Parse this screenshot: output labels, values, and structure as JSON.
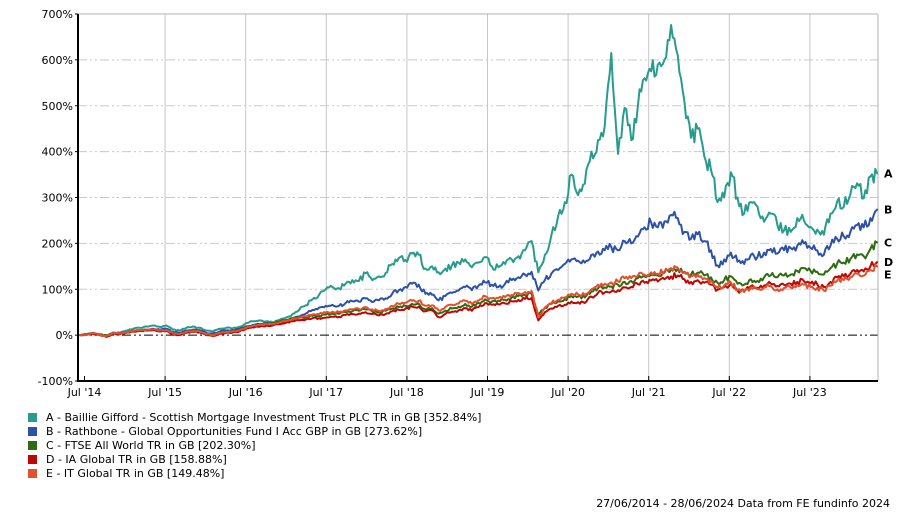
{
  "chart": {
    "y_axis_labels": [
      "700%",
      "600%",
      "500%",
      "400%",
      "300%",
      "200%",
      "100%",
      "0%",
      "-100%"
    ],
    "x_axis_labels": [
      "Jul '14",
      "Jul '15",
      "Jul '16",
      "Jul '17",
      "Jul '18",
      "Jul '19",
      "Jul '20",
      "Jul '21",
      "Jul '22",
      "Jul '23"
    ],
    "footer": "27/06/2014 - 28/06/2024 Data from FE fundinfo 2024"
  },
  "chart_data": {
    "type": "line",
    "title": "",
    "date_range_start": "27/06/2014",
    "date_range_end": "28/06/2024",
    "x_unit": "month",
    "x_points": 121,
    "ylim": [
      -100,
      700
    ],
    "y_step": 100,
    "y_unit": "%",
    "grid": true,
    "legend_position": "bottom-left",
    "colors": {
      "grid_h": "#c9c9c9",
      "grid_v": "#c6c6c6",
      "border": "#b3b3b3",
      "axis": "#000000",
      "zero_line": "#000000"
    },
    "series": [
      {
        "letter": "A",
        "label": "A - Baillie Gifford - Scottish Mortgage Investment Trust PLC TR in GB [352.84%]",
        "color": "#279c8e",
        "final_pct": 352.84,
        "values": [
          0,
          2,
          5,
          1,
          -2,
          6,
          5,
          10,
          14,
          16,
          19,
          21,
          18,
          21,
          12,
          10,
          16,
          19,
          16,
          10,
          8,
          14,
          16,
          15,
          18,
          26,
          30,
          32,
          30,
          28,
          33,
          38,
          46,
          55,
          65,
          78,
          88,
          100,
          105,
          102,
          112,
          120,
          118,
          135,
          120,
          128,
          135,
          155,
          168,
          164,
          178,
          175,
          145,
          150,
          137,
          145,
          152,
          158,
          165,
          148,
          158,
          170,
          150,
          148,
          155,
          165,
          172,
          185,
          205,
          137,
          175,
          220,
          260,
          290,
          350,
          305,
          330,
          400,
          425,
          455,
          615,
          395,
          495,
          425,
          500,
          560,
          575,
          590,
          600,
          676,
          610,
          510,
          430,
          450,
          390,
          360,
          290,
          300,
          355,
          300,
          265,
          290,
          280,
          247,
          265,
          240,
          228,
          225,
          255,
          250,
          236,
          230,
          219,
          265,
          291,
          280,
          307,
          331,
          298,
          346,
          352.84
        ]
      },
      {
        "letter": "B",
        "label": "B - Rathbone - Global Opportunities Fund I Acc GBP in GB [273.62%]",
        "color": "#2b52a8",
        "final_pct": 273.62,
        "values": [
          0,
          1,
          3,
          1,
          -1,
          4,
          4,
          6,
          9,
          10,
          12,
          14,
          12,
          14,
          7,
          5,
          10,
          12,
          11,
          5,
          3,
          8,
          10,
          11,
          13,
          19,
          22,
          24,
          26,
          25,
          28,
          31,
          35,
          40,
          47,
          55,
          60,
          64,
          66,
          64,
          70,
          74,
          73,
          80,
          72,
          76,
          80,
          90,
          98,
          105,
          112,
          110,
          90,
          88,
          76,
          85,
          92,
          97,
          105,
          98,
          108,
          115,
          110,
          105,
          112,
          120,
          126,
          132,
          138,
          97,
          120,
          135,
          142,
          155,
          165,
          162,
          158,
          175,
          182,
          185,
          192,
          185,
          205,
          200,
          215,
          235,
          245,
          235,
          248,
          262,
          255,
          225,
          210,
          220,
          205,
          185,
          152,
          165,
          180,
          160,
          155,
          175,
          170,
          180,
          188,
          178,
          185,
          190,
          195,
          200,
          190,
          185,
          175,
          195,
          210,
          215,
          225,
          240,
          235,
          255,
          273.62
        ]
      },
      {
        "letter": "C",
        "label": "C - FTSE All World TR in GB [202.30%]",
        "color": "#2f6b10",
        "final_pct": 202.3,
        "values": [
          0,
          1,
          4,
          2,
          0,
          4,
          3,
          6,
          9,
          11,
          11,
          12,
          8,
          10,
          3,
          1,
          7,
          8,
          7,
          2,
          0,
          5,
          6,
          8,
          12,
          17,
          20,
          21,
          25,
          26,
          30,
          33,
          37,
          38,
          39,
          42,
          42,
          45,
          47,
          46,
          50,
          52,
          53,
          56,
          52,
          49,
          53,
          58,
          61,
          64,
          68,
          69,
          56,
          59,
          47,
          53,
          58,
          62,
          68,
          62,
          70,
          78,
          73,
          75,
          77,
          82,
          85,
          87,
          90,
          45,
          60,
          68,
          74,
          78,
          85,
          84,
          82,
          95,
          102,
          104,
          106,
          110,
          116,
          118,
          124,
          128,
          132,
          130,
          136,
          142,
          145,
          138,
          132,
          136,
          130,
          126,
          114,
          120,
          128,
          112,
          110,
          122,
          118,
          126,
          130,
          126,
          130,
          132,
          140,
          146,
          140,
          138,
          132,
          146,
          156,
          158,
          166,
          176,
          172,
          188,
          202.3
        ]
      },
      {
        "letter": "D",
        "label": "D - IA Global TR in GB [158.88%]",
        "color": "#c00505",
        "final_pct": 158.88,
        "values": [
          0,
          1,
          3,
          0,
          -4,
          3,
          2,
          5,
          8,
          9,
          10,
          11,
          8,
          9,
          2,
          0,
          5,
          7,
          6,
          0,
          -2,
          3,
          5,
          6,
          8,
          14,
          17,
          18,
          20,
          21,
          24,
          27,
          30,
          32,
          34,
          37,
          37,
          38,
          40,
          40,
          44,
          46,
          47,
          50,
          46,
          43,
          46,
          52,
          55,
          58,
          62,
          62,
          52,
          54,
          39,
          46,
          51,
          54,
          59,
          53,
          61,
          70,
          66,
          67,
          69,
          74,
          77,
          79,
          81,
          32,
          50,
          58,
          64,
          66,
          73,
          72,
          70,
          84,
          92,
          93,
          95,
          98,
          104,
          105,
          111,
          114,
          119,
          117,
          122,
          128,
          130,
          122,
          116,
          120,
          114,
          110,
          99,
          105,
          112,
          97,
          96,
          107,
          103,
          108,
          112,
          107,
          110,
          112,
          116,
          118,
          113,
          111,
          105,
          116,
          126,
          128,
          134,
          142,
          139,
          150,
          158.88
        ]
      },
      {
        "letter": "E",
        "label": "E - IT Global TR in GB [149.48%]",
        "color": "#e0512d",
        "final_pct": 149.48,
        "values": [
          0,
          1,
          4,
          1,
          -2,
          4,
          3,
          6,
          10,
          11,
          12,
          13,
          10,
          11,
          4,
          2,
          7,
          9,
          8,
          2,
          0,
          5,
          7,
          8,
          10,
          16,
          20,
          22,
          24,
          24,
          28,
          31,
          35,
          38,
          41,
          45,
          46,
          49,
          51,
          50,
          54,
          56,
          57,
          61,
          56,
          53,
          57,
          64,
          68,
          71,
          75,
          75,
          64,
          65,
          54,
          61,
          66,
          69,
          75,
          68,
          76,
          85,
          80,
          81,
          83,
          88,
          92,
          94,
          96,
          40,
          60,
          70,
          77,
          82,
          90,
          89,
          87,
          100,
          110,
          112,
          115,
          117,
          124,
          124,
          130,
          132,
          137,
          134,
          139,
          146,
          147,
          136,
          128,
          132,
          124,
          118,
          103,
          108,
          115,
          98,
          94,
          104,
          100,
          104,
          107,
          100,
          103,
          104,
          108,
          110,
          105,
          103,
          97,
          108,
          118,
          120,
          126,
          134,
          130,
          142,
          149.48
        ]
      }
    ]
  }
}
